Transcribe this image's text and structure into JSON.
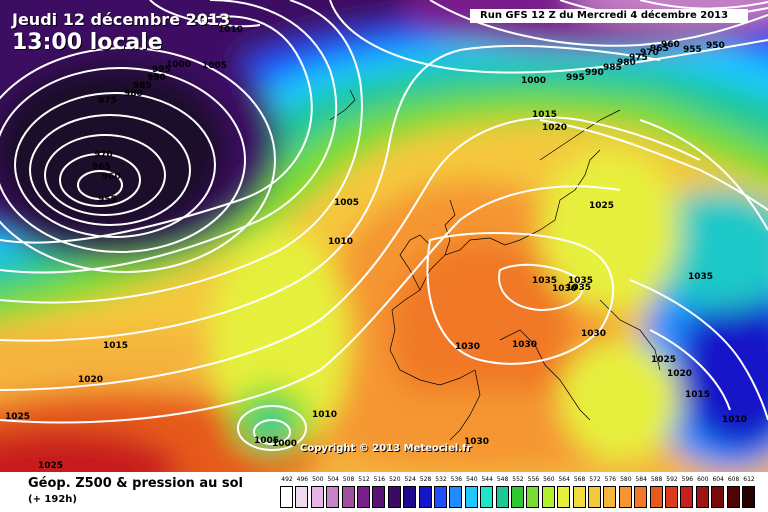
{
  "header": {
    "date": "Jeudi 12 décembre 2013",
    "local_time": "13:00 locale",
    "run": "Run GFS 12 Z du Mercredi 4 décembre 2013"
  },
  "footer": {
    "title": "Géop. Z500 & pression au sol",
    "forecast_hour": "(+ 192h)",
    "copyright": "Copyright © 2013 Meteociel.fr"
  },
  "legend": {
    "ticks": [
      "492",
      "496",
      "500",
      "504",
      "508",
      "512",
      "516",
      "520",
      "524",
      "528",
      "532",
      "536",
      "540",
      "544",
      "548",
      "552",
      "556",
      "560",
      "564",
      "568",
      "572",
      "576",
      "580",
      "584",
      "588",
      "592",
      "596",
      "600",
      "604",
      "608",
      "612"
    ],
    "colors": [
      "#ffffff",
      "#f0dcf0",
      "#e6b4e6",
      "#c882c8",
      "#a050a0",
      "#7a1e8c",
      "#5a1478",
      "#3c0a64",
      "#1e0a8c",
      "#1414c8",
      "#1e50ff",
      "#1e8cff",
      "#1ec8ff",
      "#1ee6c8",
      "#1ec896",
      "#32c832",
      "#78dc32",
      "#b4f032",
      "#e6f03c",
      "#f0dc3c",
      "#f5c83c",
      "#f5b43c",
      "#f59632",
      "#f07828",
      "#e65a1e",
      "#dc3c1e",
      "#c81e1e",
      "#a01414",
      "#780a0a",
      "#500505",
      "#280000"
    ]
  },
  "isobar_labels": [
    "1010",
    "1005",
    "1000",
    "995",
    "990",
    "985",
    "980",
    "975",
    "970",
    "965",
    "960",
    "955",
    "1000",
    "995",
    "990",
    "985",
    "980",
    "975",
    "970",
    "965",
    "960",
    "955",
    "950",
    "1015",
    "1020",
    "1025",
    "1005",
    "1010",
    "1015",
    "1020",
    "1025",
    "1025",
    "1035",
    "1035",
    "1035",
    "1030",
    "1030",
    "1030",
    "1030",
    "1030",
    "1025",
    "1020",
    "1015",
    "1010",
    "1035",
    "1010",
    "1005",
    "1000"
  ],
  "colors": {
    "isobar": "#ffffff",
    "background_bottom": "#ffffff"
  }
}
